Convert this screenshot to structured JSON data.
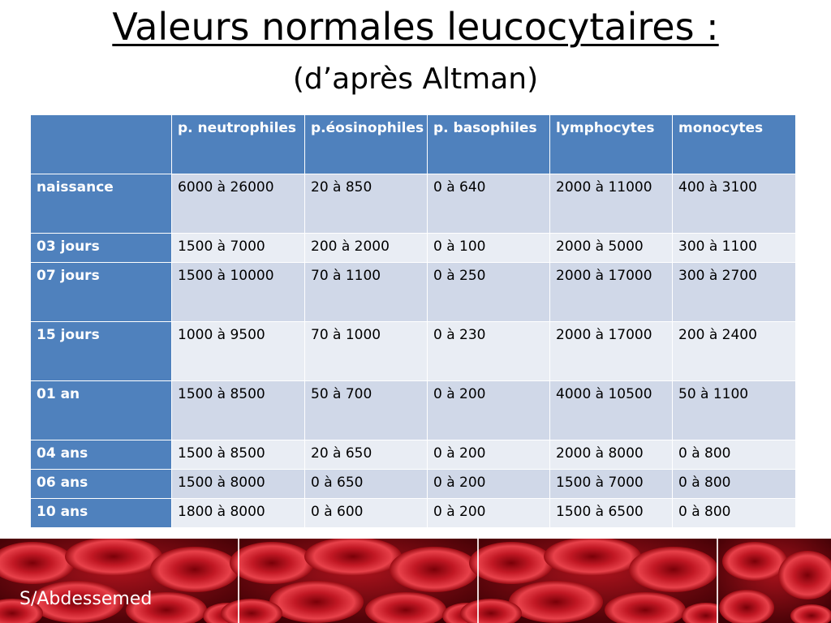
{
  "title": "Valeurs normales leucocytaires :",
  "subtitle": "(d’après Altman)",
  "table": {
    "headers": [
      "",
      "p. neutrophiles",
      "p.éosinophiles",
      "p. basophiles",
      "lymphocytes",
      "monocytes"
    ],
    "rows": [
      {
        "label": "naissance",
        "cells": [
          "6000 à 26000",
          "20 à 850",
          "0 à 640",
          "2000 à 11000",
          "400 à 3100"
        ]
      },
      {
        "label": "03 jours",
        "cells": [
          "1500 à 7000",
          "200 à 2000",
          "0 à 100",
          "2000 à 5000",
          "300 à 1100"
        ]
      },
      {
        "label": "07 jours",
        "cells": [
          "1500 à 10000",
          "70 à 1100",
          "0 à 250",
          "2000 à 17000",
          "300 à 2700"
        ]
      },
      {
        "label": "15 jours",
        "cells": [
          "1000 à 9500",
          "70 à 1000",
          "0 à 230",
          "2000 à 17000",
          "200 à 2400"
        ]
      },
      {
        "label": "01 an",
        "cells": [
          "1500 à 8500",
          "50 à 700",
          "0 à 200",
          "4000 à 10500",
          "50 à 1100"
        ]
      },
      {
        "label": "04 ans",
        "cells": [
          "1500 à 8500",
          "20 à 650",
          "0 à 200",
          "2000 à 8000",
          "0 à 800"
        ]
      },
      {
        "label": "06 ans",
        "cells": [
          "1500 à 8000",
          "0 à 650",
          "0 à 200",
          "1500 à 7000",
          "0 à 800"
        ]
      },
      {
        "label": "10 ans",
        "cells": [
          "1800 à 8000",
          "0 à 600",
          "0 à 200",
          "1500 à 6500",
          "0 à 800"
        ]
      }
    ]
  },
  "footer": {
    "author": "S/Abdessemed",
    "image": "red-blood-cells-image"
  },
  "colors": {
    "header_blue": "#4f81bd",
    "row_band_dark": "#d0d8e8",
    "row_band_light": "#e9edf4",
    "footer_red": "#b0101a"
  }
}
